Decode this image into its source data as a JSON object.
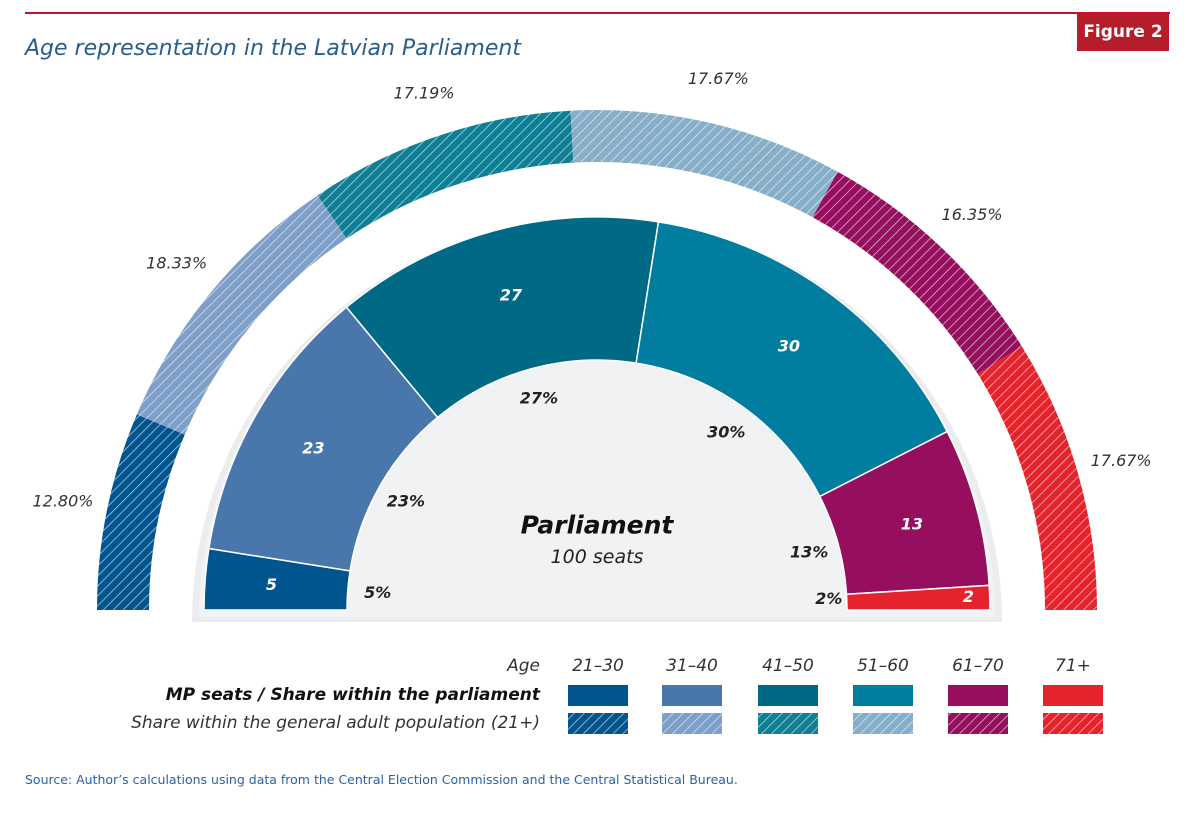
{
  "figure_label": "Figure 2",
  "source": "Source: Author’s calculations using data from the Central Election Commission and the Central Statistical Bureau.",
  "chart_data": {
    "type": "pie",
    "title": "Age representation in the Latvian Parliament",
    "center_title": "Parliament",
    "center_subtitle": "100 seats",
    "categories": [
      "21–30",
      "31–40",
      "41–50",
      "51–60",
      "61–70",
      "71+"
    ],
    "colors": [
      "#00558f",
      "#4a77ab",
      "#006a86",
      "#007d9f",
      "#960f5e",
      "#e4232c"
    ],
    "series": [
      {
        "name": "MP seats / Share within the parliament",
        "values": [
          5,
          23,
          27,
          30,
          13,
          2
        ],
        "value_labels": [
          "5",
          "23",
          "27",
          "30",
          "13",
          "2"
        ],
        "share_labels": [
          "5%",
          "23%",
          "27%",
          "30%",
          "13%",
          "2%"
        ]
      },
      {
        "name": "Share within the general adult population (21+)",
        "values": [
          12.8,
          18.33,
          17.19,
          17.67,
          16.35,
          17.67
        ],
        "value_labels": [
          "12.80%",
          "18.33%",
          "17.19%",
          "17.67%",
          "16.35%",
          "17.67%"
        ],
        "colors": [
          "#00558f",
          "#7d9fc9",
          "#0e7f95",
          "#86aec8",
          "#960f5e",
          "#e4232c"
        ]
      }
    ],
    "legend": {
      "age_label": "Age",
      "placement": "bottom-right"
    }
  }
}
